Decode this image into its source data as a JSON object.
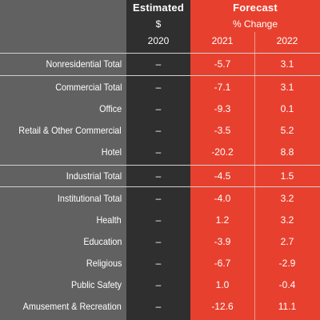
{
  "header": {
    "estimated_label": "Estimated",
    "estimated_unit": "$",
    "forecast_label": "Forecast",
    "forecast_unit": "% Change",
    "year_2020": "2020",
    "year_2021": "2021",
    "year_2022": "2022"
  },
  "rows": [
    {
      "label": "Nonresidential Total",
      "v2020": "–",
      "v2021": "-5.7",
      "v2022": "3.1"
    },
    {
      "label": "Commercial Total",
      "v2020": "–",
      "v2021": "-7.1",
      "v2022": "3.1"
    },
    {
      "label": "Office",
      "v2020": "–",
      "v2021": "-9.3",
      "v2022": "0.1"
    },
    {
      "label": "Retail & Other Commercial",
      "v2020": "–",
      "v2021": "-3.5",
      "v2022": "5.2"
    },
    {
      "label": "Hotel",
      "v2020": "–",
      "v2021": "-20.2",
      "v2022": "8.8"
    },
    {
      "label": "Industrial Total",
      "v2020": "–",
      "v2021": "-4.5",
      "v2022": "1.5"
    },
    {
      "label": "Institutional Total",
      "v2020": "–",
      "v2021": "-4.0",
      "v2022": "3.2"
    },
    {
      "label": "Health",
      "v2020": "–",
      "v2021": "1.2",
      "v2022": "3.2"
    },
    {
      "label": "Education",
      "v2020": "–",
      "v2021": "-3.9",
      "v2022": "2.7"
    },
    {
      "label": "Religious",
      "v2020": "–",
      "v2021": "-6.7",
      "v2022": "-2.9"
    },
    {
      "label": "Public Safety",
      "v2020": "–",
      "v2021": "1.0",
      "v2022": "-0.4"
    },
    {
      "label": "Amusement & Recreation",
      "v2020": "–",
      "v2021": "-12.6",
      "v2022": "11.1"
    }
  ]
}
